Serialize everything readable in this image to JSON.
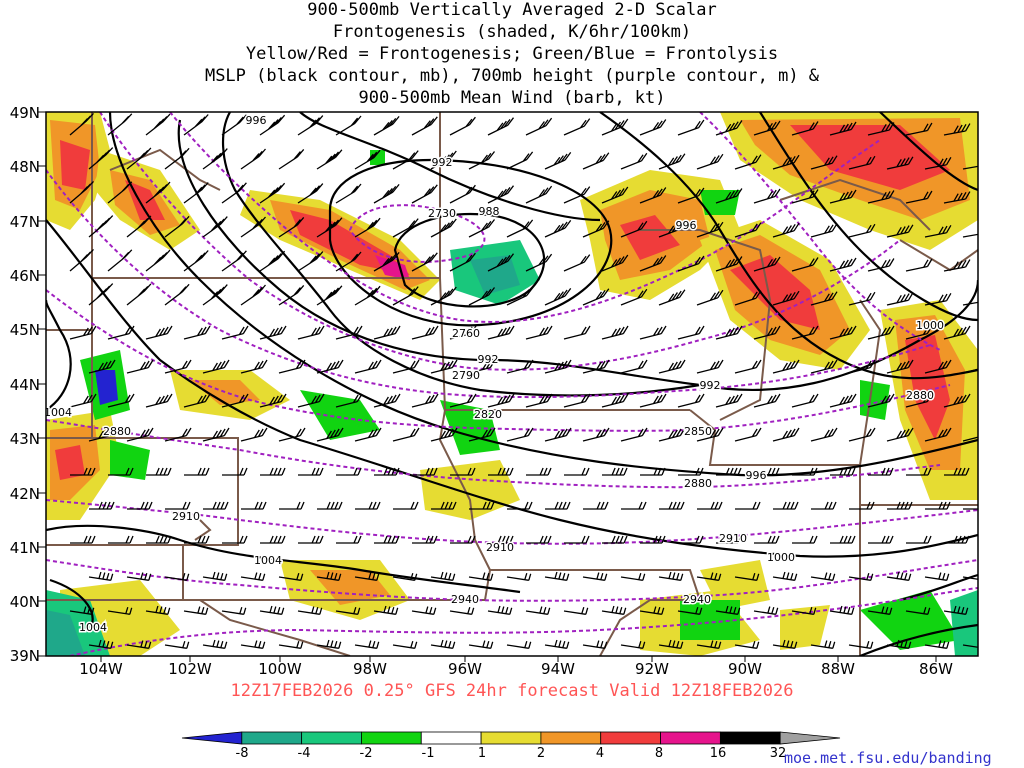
{
  "title": {
    "lines": [
      "900-500mb Vertically Averaged 2-D Scalar",
      "Frontogenesis (shaded, K/6hr/100km)",
      "Yellow/Red = Frontogenesis;  Green/Blue = Frontolysis",
      "MSLP (black contour, mb), 700mb height (purple contour, m) &",
      "900-500mb Mean Wind (barb, kt)"
    ]
  },
  "valid_line": "12Z17FEB2026 0.25° GFS 24hr forecast Valid 12Z18FEB2026",
  "credit": "moe.met.fsu.edu/banding",
  "lat_labels": [
    "49N",
    "48N",
    "47N",
    "46N",
    "45N",
    "44N",
    "43N",
    "42N",
    "41N",
    "40N",
    "39N"
  ],
  "lon_labels": [
    "104W",
    "102W",
    "100W",
    "98W",
    "96W",
    "94W",
    "92W",
    "90W",
    "88W",
    "86W"
  ],
  "colorbar": {
    "labels": [
      "-8",
      "-4",
      "-2",
      "-1",
      "1",
      "2",
      "4",
      "8",
      "16",
      "32"
    ],
    "colors": [
      "#2323d0",
      "#1fa88a",
      "#19c77c",
      "#11d411",
      "#ffffff",
      "#e6dc32",
      "#f09628",
      "#f03c3c",
      "#e6148c",
      "#000000",
      "#a0a0a0"
    ]
  },
  "mslp_labels": [
    "996",
    "992",
    "988",
    "996",
    "1000",
    "992",
    "992",
    "1004",
    "1004",
    "1004",
    "996",
    "1000"
  ],
  "height_labels": [
    "2730",
    "2760",
    "2790",
    "2820",
    "2850",
    "2880",
    "2880",
    "2880",
    "2910",
    "2910",
    "2910",
    "2940",
    "2940"
  ],
  "colors": {
    "mslp": "#000000",
    "height": "#a020c0",
    "borders": "#7a5a4a",
    "valid_text": "#ff5555",
    "credit_text": "#3333cc"
  }
}
